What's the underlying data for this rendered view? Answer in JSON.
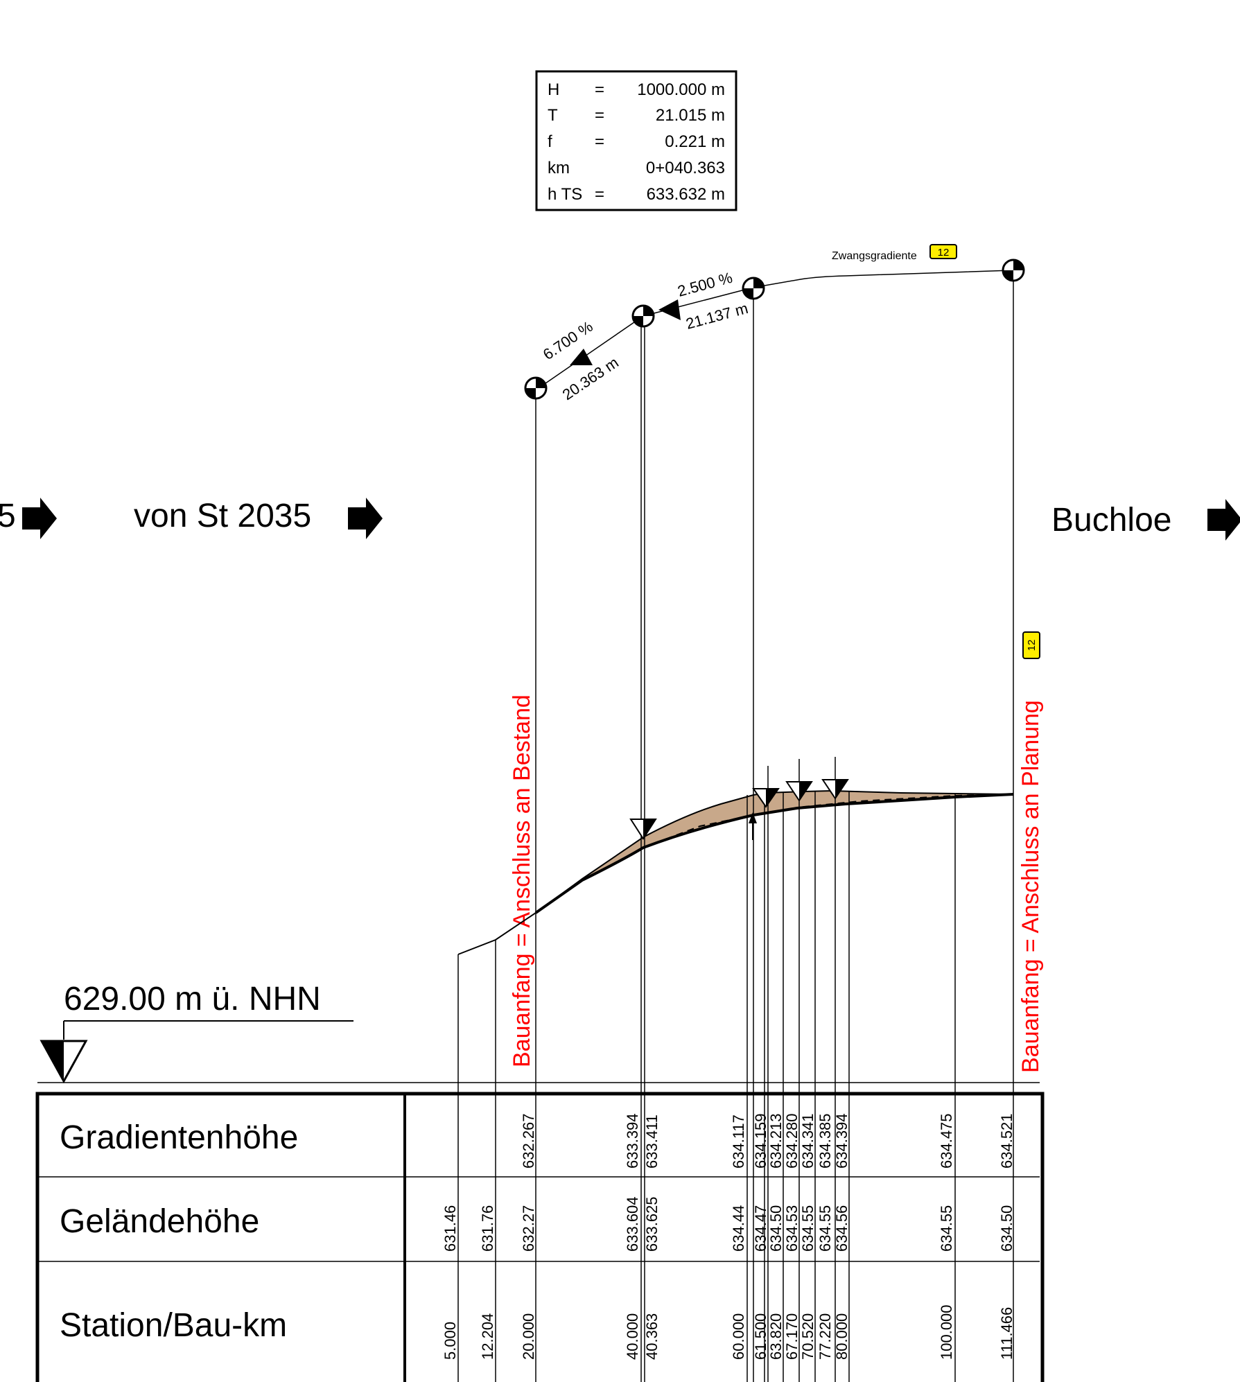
{
  "curve_box": {
    "rows": [
      {
        "name": "H",
        "eq": "=",
        "value": "1000.000 m"
      },
      {
        "name": "T",
        "eq": "=",
        "value": "21.015 m"
      },
      {
        "name": "f",
        "eq": "=",
        "value": "0.221 m"
      },
      {
        "name": "km",
        "eq": "",
        "value": "0+040.363"
      },
      {
        "name": "h TS",
        "eq": "=",
        "value": "633.632 m"
      }
    ]
  },
  "grade_labels": {
    "slope1_percent": "6.700 %",
    "slope1_length": "20.363 m",
    "slope2_percent": "2.500 %",
    "slope2_length": "21.137 m",
    "zwang_label": "Zwangsgradiente",
    "zwang_badge": "12"
  },
  "direction_labels": {
    "partial_left": "5",
    "from_road": "von St 2035",
    "to_town": "Buchloe"
  },
  "vertical_notes": {
    "start_left": "Bauanfang = Anschluss an Bestand",
    "start_right": "Bauanfang = Anschluss an Planung",
    "badge_right": "12"
  },
  "datum": {
    "label": "629.00 m ü. NHN"
  },
  "table": {
    "row_labels": [
      "Gradientenhöhe",
      "Geländehöhe",
      "Station/Bau-km"
    ],
    "gradient_heights": [
      "632.267",
      "633.394",
      "633.411",
      "634.117",
      "634.159",
      "634.213",
      "634.280",
      "634.341",
      "634.385",
      "634.394",
      "634.475",
      "634.521"
    ],
    "terrain_heights": [
      "631.46",
      "631.76",
      "632.27",
      "633.604",
      "633.625",
      "634.44",
      "634.47",
      "634.50",
      "634.53",
      "634.55",
      "634.55",
      "634.56",
      "634.55",
      "634.50"
    ],
    "stations": [
      "5.000",
      "12.204",
      "20.000",
      "40.000",
      "40.363",
      "60.000",
      "61.500",
      "63.820",
      "67.170",
      "70.520",
      "77.220",
      "80.000",
      "100.000",
      "111.466"
    ]
  },
  "colors": {
    "line": "#000000",
    "note_red": "#ff0000",
    "badge_yellow": "#ffee00",
    "fill_earth": "#c8a88a"
  }
}
